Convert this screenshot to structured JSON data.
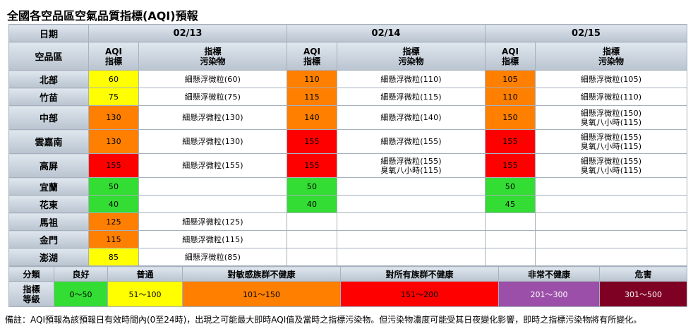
{
  "title": "全國各空品區空氣品質指標(AQI)預報",
  "colors": {
    "good": "#33dd33",
    "moderate": "#ffff00",
    "usg": "#ff7f00",
    "unhealthy": "#ff0000",
    "very_unhealthy": "#9b4fa8",
    "hazardous": "#7e0023"
  },
  "header": {
    "date_label": "日期",
    "region_label": "空品區",
    "aqi_label_1": "AQI",
    "aqi_label_2": "指標",
    "pollutant_label_1": "指標",
    "pollutant_label_2": "污染物",
    "dates": [
      "02/13",
      "02/14",
      "02/15"
    ]
  },
  "regions": [
    {
      "name": "北部",
      "days": [
        {
          "aqi": "60",
          "level": "moderate",
          "pollutants": [
            "細懸浮微粒(60)"
          ]
        },
        {
          "aqi": "110",
          "level": "usg",
          "pollutants": [
            "細懸浮微粒(110)"
          ]
        },
        {
          "aqi": "105",
          "level": "usg",
          "pollutants": [
            "細懸浮微粒(105)"
          ]
        }
      ]
    },
    {
      "name": "竹苗",
      "days": [
        {
          "aqi": "75",
          "level": "moderate",
          "pollutants": [
            "細懸浮微粒(75)"
          ]
        },
        {
          "aqi": "115",
          "level": "usg",
          "pollutants": [
            "細懸浮微粒(115)"
          ]
        },
        {
          "aqi": "110",
          "level": "usg",
          "pollutants": [
            "細懸浮微粒(110)"
          ]
        }
      ]
    },
    {
      "name": "中部",
      "days": [
        {
          "aqi": "130",
          "level": "usg",
          "pollutants": [
            "細懸浮微粒(130)"
          ]
        },
        {
          "aqi": "140",
          "level": "usg",
          "pollutants": [
            "細懸浮微粒(140)"
          ]
        },
        {
          "aqi": "150",
          "level": "usg",
          "pollutants": [
            "細懸浮微粒(150)",
            "臭氧八小時(115)"
          ]
        }
      ]
    },
    {
      "name": "雲嘉南",
      "days": [
        {
          "aqi": "130",
          "level": "usg",
          "pollutants": [
            "細懸浮微粒(130)"
          ]
        },
        {
          "aqi": "155",
          "level": "unhealthy",
          "pollutants": [
            "細懸浮微粒(155)"
          ]
        },
        {
          "aqi": "155",
          "level": "unhealthy",
          "pollutants": [
            "細懸浮微粒(155)",
            "臭氧八小時(115)"
          ]
        }
      ]
    },
    {
      "name": "高屏",
      "days": [
        {
          "aqi": "155",
          "level": "unhealthy",
          "pollutants": [
            "細懸浮微粒(155)"
          ]
        },
        {
          "aqi": "155",
          "level": "unhealthy",
          "pollutants": [
            "細懸浮微粒(155)",
            "臭氧八小時(115)"
          ]
        },
        {
          "aqi": "155",
          "level": "unhealthy",
          "pollutants": [
            "細懸浮微粒(155)",
            "臭氧八小時(115)"
          ]
        }
      ]
    },
    {
      "name": "宜蘭",
      "days": [
        {
          "aqi": "50",
          "level": "good",
          "pollutants": []
        },
        {
          "aqi": "50",
          "level": "good",
          "pollutants": []
        },
        {
          "aqi": "50",
          "level": "good",
          "pollutants": []
        }
      ]
    },
    {
      "name": "花東",
      "days": [
        {
          "aqi": "40",
          "level": "good",
          "pollutants": []
        },
        {
          "aqi": "40",
          "level": "good",
          "pollutants": []
        },
        {
          "aqi": "45",
          "level": "good",
          "pollutants": []
        }
      ]
    },
    {
      "name": "馬祖",
      "days": [
        {
          "aqi": "125",
          "level": "usg",
          "pollutants": [
            "細懸浮微粒(125)"
          ]
        },
        {
          "aqi": "",
          "level": "",
          "pollutants": []
        },
        {
          "aqi": "",
          "level": "",
          "pollutants": []
        }
      ]
    },
    {
      "name": "金門",
      "days": [
        {
          "aqi": "115",
          "level": "usg",
          "pollutants": [
            "細懸浮微粒(115)"
          ]
        },
        {
          "aqi": "",
          "level": "",
          "pollutants": []
        },
        {
          "aqi": "",
          "level": "",
          "pollutants": []
        }
      ]
    },
    {
      "name": "澎湖",
      "days": [
        {
          "aqi": "85",
          "level": "moderate",
          "pollutants": [
            "細懸浮微粒(85)"
          ]
        },
        {
          "aqi": "",
          "level": "",
          "pollutants": []
        },
        {
          "aqi": "",
          "level": "",
          "pollutants": []
        }
      ]
    }
  ],
  "legend": {
    "category_label": "分類",
    "index_label_1": "指標",
    "index_label_2": "等級",
    "categories": [
      {
        "name": "良好",
        "range": "0～50",
        "level": "good"
      },
      {
        "name": "普通",
        "range": "51～100",
        "level": "moderate"
      },
      {
        "name": "對敏感族群不健康",
        "range": "101～150",
        "level": "usg"
      },
      {
        "name": "對所有族群不健康",
        "range": "151～200",
        "level": "unhealthy"
      },
      {
        "name": "非常不健康",
        "range": "201～300",
        "level": "very_unhealthy"
      },
      {
        "name": "危害",
        "range": "301～500",
        "level": "hazardous"
      }
    ]
  },
  "note": "備註：AQI預報為該預報日有效時間內(0至24時)，出現之可能最大即時AQI值及當時之指標污染物。但污染物濃度可能受其日夜變化影響，即時之指標污染物將有所變化。"
}
